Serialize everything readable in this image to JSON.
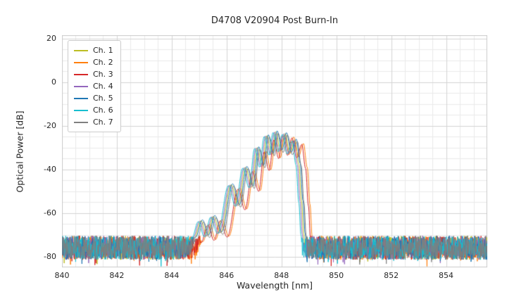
{
  "chart_data": {
    "type": "line",
    "title": "D4708 V20904 Post Burn-In",
    "xlabel": "Wavelength [nm]",
    "ylabel": "Optical Power [dB]",
    "xlim": [
      840,
      855.5
    ],
    "ylim": [
      -85,
      21.5
    ],
    "xticks": [
      840,
      842,
      844,
      846,
      848,
      850,
      852,
      854
    ],
    "yticks": [
      20,
      0,
      -20,
      -40,
      -60,
      -80
    ],
    "grid": {
      "on": true,
      "minor_x_step_nm": 0.5,
      "minor_y_step_db": 5,
      "major_x_step_nm": 2,
      "major_y_step_db": 20
    },
    "legend_position": "upper left",
    "noise_floor_db": {
      "base": -70.5,
      "spread": 11,
      "min": -84.5
    },
    "envelope_points": [
      [
        844.5,
        -81
      ],
      [
        844.85,
        -72
      ],
      [
        845.1,
        -64
      ],
      [
        845.32,
        -71
      ],
      [
        845.55,
        -62
      ],
      [
        845.8,
        -69.5
      ],
      [
        846.2,
        -47.5
      ],
      [
        846.45,
        -57
      ],
      [
        846.72,
        -39.5
      ],
      [
        846.95,
        -48.5
      ],
      [
        847.15,
        -30.5
      ],
      [
        847.33,
        -39
      ],
      [
        847.5,
        -25
      ],
      [
        847.68,
        -33.5
      ],
      [
        847.82,
        -23.2
      ],
      [
        848.0,
        -32
      ],
      [
        848.16,
        -24
      ],
      [
        848.34,
        -33
      ],
      [
        848.52,
        -27
      ],
      [
        848.66,
        -38
      ],
      [
        848.76,
        -55
      ],
      [
        848.84,
        -70
      ],
      [
        848.9,
        -80
      ]
    ],
    "peak_power_db": -23,
    "peak_wavelength_nm": 847.8,
    "series": [
      {
        "name": "Ch. 1",
        "color": "#bcbd22",
        "wavelength_offset_nm": -0.03,
        "level_offset_db": 0.4
      },
      {
        "name": "Ch. 2",
        "color": "#ff7f0e",
        "wavelength_offset_nm": 0.28,
        "level_offset_db": -1.2
      },
      {
        "name": "Ch. 3",
        "color": "#d62728",
        "wavelength_offset_nm": 0.22,
        "level_offset_db": -1.6
      },
      {
        "name": "Ch. 4",
        "color": "#9467bd",
        "wavelength_offset_nm": -0.08,
        "level_offset_db": 0.2
      },
      {
        "name": "Ch. 5",
        "color": "#1f77b4",
        "wavelength_offset_nm": 0.02,
        "level_offset_db": 0.8
      },
      {
        "name": "Ch. 6",
        "color": "#17becf",
        "wavelength_offset_nm": -0.13,
        "level_offset_db": 0.0
      },
      {
        "name": "Ch. 7",
        "color": "#7f7f7f",
        "wavelength_offset_nm": 0.06,
        "level_offset_db": -0.3
      }
    ]
  }
}
